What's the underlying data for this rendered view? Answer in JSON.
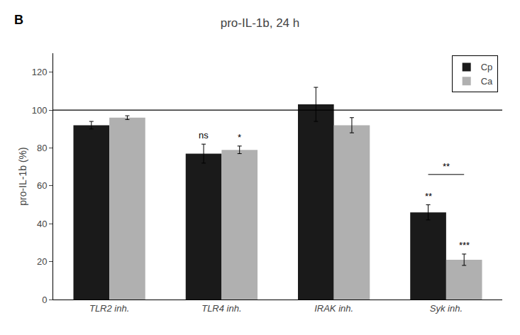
{
  "chart_data": {
    "type": "bar",
    "title": "pro-IL-1b, 24 h",
    "panel_label": "B",
    "ylabel": "pro-IL-1b (%)",
    "categories": [
      "TLR2 inh.",
      "TLR4 inh.",
      "IRAK inh.",
      "Syk inh."
    ],
    "series": [
      {
        "name": "Cp",
        "color": "#1a1a1a",
        "values": [
          92,
          77,
          103,
          46
        ],
        "errors": [
          2,
          5,
          9,
          4
        ],
        "annotations": [
          null,
          "ns",
          null,
          "**"
        ]
      },
      {
        "name": "Ca",
        "color": "#b0b0b0",
        "values": [
          96,
          79,
          92,
          21
        ],
        "errors": [
          1,
          2,
          4,
          3
        ],
        "annotations": [
          null,
          "*",
          null,
          "***"
        ]
      }
    ],
    "reference_line": 100,
    "bracket": {
      "category": "Syk inh.",
      "y": 66,
      "label": "**"
    },
    "ylim": [
      0,
      130
    ],
    "yticks": [
      0,
      20,
      40,
      60,
      80,
      100,
      120
    ],
    "grid": false,
    "legend": "upper right"
  }
}
